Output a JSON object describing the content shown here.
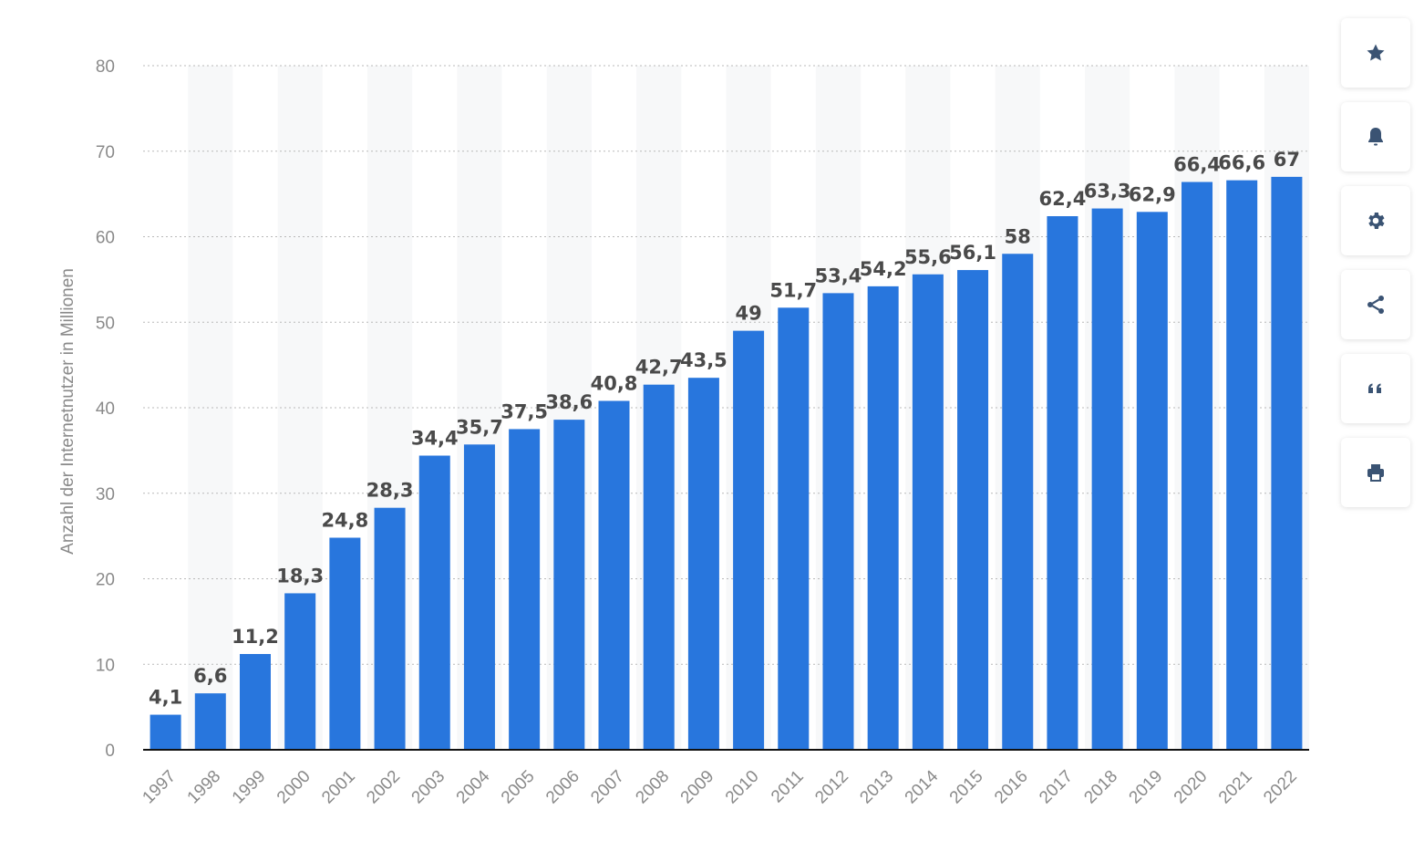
{
  "chart_data": {
    "type": "bar",
    "categories": [
      "1997",
      "1998",
      "1999",
      "2000",
      "2001",
      "2002",
      "2003",
      "2004",
      "2005",
      "2006",
      "2007",
      "2008",
      "2009",
      "2010",
      "2011",
      "2012",
      "2013",
      "2014",
      "2015",
      "2016",
      "2017",
      "2018",
      "2019",
      "2020",
      "2021",
      "2022"
    ],
    "values": [
      4.1,
      6.6,
      11.2,
      18.3,
      24.8,
      28.3,
      34.4,
      35.7,
      37.5,
      38.6,
      40.8,
      42.7,
      43.5,
      49,
      51.7,
      53.4,
      54.2,
      55.6,
      56.1,
      58,
      62.4,
      63.3,
      62.9,
      66.4,
      66.6,
      67
    ],
    "value_labels": [
      "4,1",
      "6,6",
      "11,2",
      "18,3",
      "24,8",
      "28,3",
      "34,4",
      "35,7",
      "37,5",
      "38,6",
      "40,8",
      "42,7",
      "43,5",
      "49",
      "51,7",
      "53,4",
      "54,2",
      "55,6",
      "56,1",
      "58",
      "62,4",
      "63,3",
      "62,9",
      "66,4",
      "66,6",
      "67"
    ],
    "ylabel": "Anzahl der Internetnutzer in Millionen",
    "xlabel": "",
    "ylim": [
      0,
      80
    ],
    "yticks": [
      0,
      10,
      20,
      30,
      40,
      50,
      60,
      70,
      80
    ],
    "grid": true,
    "bar_color": "#2876dd"
  },
  "toolbar": {
    "buttons": [
      {
        "name": "favorite-button",
        "icon": "star-icon"
      },
      {
        "name": "notification-button",
        "icon": "bell-icon"
      },
      {
        "name": "settings-button",
        "icon": "gear-icon"
      },
      {
        "name": "share-button",
        "icon": "share-icon"
      },
      {
        "name": "cite-button",
        "icon": "quote-icon"
      },
      {
        "name": "print-button",
        "icon": "printer-icon"
      }
    ],
    "icon_color": "#3a5373"
  }
}
